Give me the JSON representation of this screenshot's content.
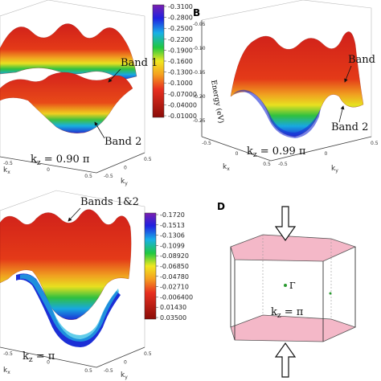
{
  "panels": {
    "a": {
      "label": "",
      "colorbar_ticks": [
        "-0.3100",
        "-0.2800",
        "-0.2500",
        "-0.2200",
        "-0.1900",
        "-0.1600",
        "-0.1300",
        "-0.1000",
        "-0.07000",
        "-0.04000",
        "-0.01000"
      ],
      "band1": "Band 1",
      "band2": "Band 2",
      "kz": "k",
      "kz_sub": "z",
      "kz_val": " = 0.90 π",
      "axis_ky": "k",
      "axis_ky_sub": "y",
      "axis_kx": "k",
      "axis_kx_sub": "x",
      "axis_ticks_y": [
        "-0.5",
        "0",
        "0.5"
      ],
      "axis_ticks_x": [
        "-0.5",
        "0",
        "0.5"
      ]
    },
    "b": {
      "label": "B",
      "energy_label": "Energy (eV)",
      "z_ticks": [
        "-0.05",
        "-0.10",
        "-0.15",
        "-0.20",
        "-0.25"
      ],
      "band": "Band",
      "band2": "Band 2",
      "kz": "k",
      "kz_sub": "z",
      "kz_val": " = 0.99 π",
      "axis_ky": "k",
      "axis_ky_sub": "y",
      "axis_kx": "k",
      "axis_kx_sub": "x",
      "axis_ticks_y": [
        "-0.5",
        "0",
        "0.5"
      ],
      "axis_ticks_x": [
        "-0.5",
        "0",
        "0.5"
      ]
    },
    "c": {
      "label": "",
      "colorbar_ticks": [
        "-0.1720",
        "-0.1513",
        "-0.1306",
        "-0.1099",
        "-0.08920",
        "-0.06850",
        "-0.04780",
        "-0.02710",
        "-0.006400",
        "0.01430",
        "0.03500"
      ],
      "bands": "Bands 1&2",
      "kz": "k",
      "kz_sub": "z",
      "kz_val": " = π",
      "axis_ky": "k",
      "axis_ky_sub": "y",
      "axis_kx": "k",
      "axis_kx_sub": "x",
      "axis_ticks_y": [
        "-0.5",
        "0",
        "0.5"
      ],
      "axis_ticks_x": [
        "-0.5",
        "0",
        "0.5"
      ]
    },
    "d": {
      "label": "D",
      "gamma": "Γ",
      "kz": "k",
      "kz_sub": "z",
      "kz_val": " = π"
    }
  },
  "colors": {
    "surface_top": "#d0201a",
    "surface_mid": "#e8e020",
    "surface_low": "#1a9e3a",
    "surface_bottom": "#1c2fd6",
    "hex_face": "#f4b8c8"
  }
}
